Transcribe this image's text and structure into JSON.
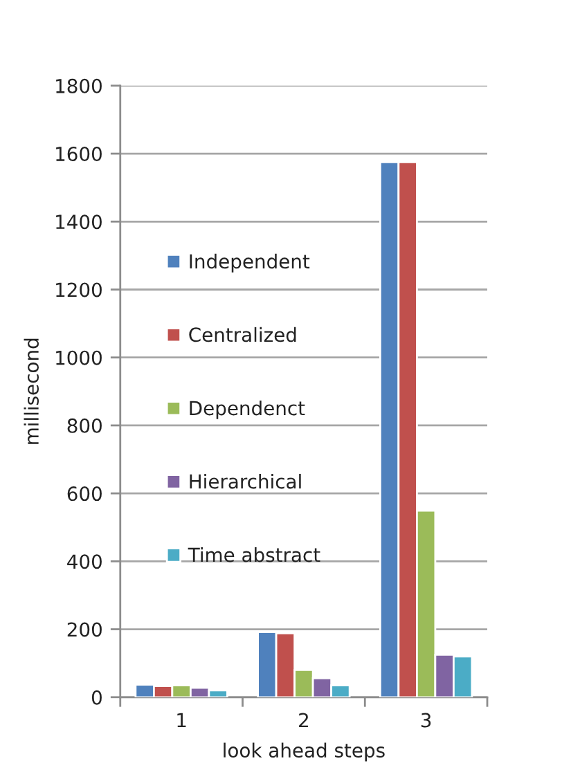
{
  "chart_data": {
    "type": "bar",
    "xlabel": "look ahead steps",
    "ylabel": "millisecond",
    "categories": [
      "1",
      "2",
      "3"
    ],
    "series": [
      {
        "name": "Independent",
        "color": "#4f81bd",
        "values": [
          37,
          192,
          1575
        ]
      },
      {
        "name": "Centralized",
        "color": "#c0504d",
        "values": [
          33,
          188,
          1575
        ]
      },
      {
        "name": "Dependenct",
        "color": "#9bbb59",
        "values": [
          35,
          80,
          549
        ]
      },
      {
        "name": "Hierarchical",
        "color": "#8064a2",
        "values": [
          28,
          56,
          125
        ]
      },
      {
        "name": "Time abstract",
        "color": "#4bacc6",
        "values": [
          20,
          35,
          120
        ]
      }
    ],
    "ylim": [
      0,
      1800
    ],
    "yticks": [
      0,
      200,
      400,
      600,
      800,
      1000,
      1200,
      1400,
      1600,
      1800
    ],
    "grid": "y",
    "legend": "left"
  }
}
